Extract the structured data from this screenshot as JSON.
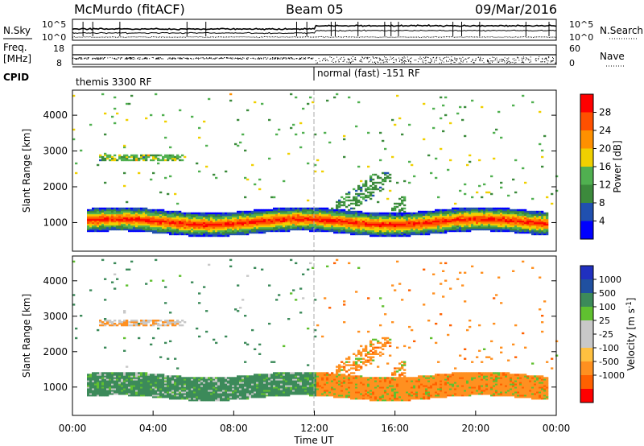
{
  "header": {
    "station": "McMurdo (fitACF)",
    "beam": "Beam 05",
    "date": "09/Mar/2016"
  },
  "noise_panel": {
    "left_label": "N.Sky",
    "right_label": "N.Search",
    "left_ticks": [
      "10^5",
      "10^0"
    ],
    "right_ticks": [
      "10^5",
      "10^0"
    ]
  },
  "freq_panel": {
    "left_label_1": "Freq.",
    "left_label_2": "[MHz]",
    "right_label": "Nave",
    "left_ticks": [
      "18",
      "8"
    ],
    "right_ticks": [
      "60",
      "0"
    ]
  },
  "cpid_panel": {
    "label": "CPID",
    "segments": [
      "themis 3300 RF",
      "normal (fast) -151 RF"
    ]
  },
  "colors": {
    "power_scale": [
      "#0000ff",
      "#2050b0",
      "#3c8a3c",
      "#50b050",
      "#f0d000",
      "#ff9000",
      "#ff5000",
      "#ff0000"
    ],
    "velocity_scale": [
      "#ff0000",
      "#ff6000",
      "#ff9020",
      "#ffc040",
      "#c8c8c8",
      "#c8c8c8",
      "#60c030",
      "#3c8a5a",
      "#2050a0",
      "#2030c0"
    ]
  },
  "chart_data": [
    {
      "type": "heatmap",
      "title": "",
      "ylabel": "Slant Range [km]",
      "xlabel": "",
      "y_ticks": [
        "1000",
        "2000",
        "3000",
        "4000"
      ],
      "ylim": [
        200,
        4700
      ],
      "xlim_hours": [
        0,
        24
      ],
      "colorbar": {
        "label": "Power [dB]",
        "ticks": [
          "4",
          "8",
          "12",
          "16",
          "20",
          "24",
          "28"
        ],
        "range": [
          0,
          30
        ]
      },
      "bands": [
        {
          "x_start": 0.5,
          "x_end": 23.5,
          "y_center_km": 1000,
          "thickness_km": 600,
          "dominant": "orange-red"
        },
        {
          "x_start": 1.0,
          "x_end": 5.5,
          "y_center_km": 2800,
          "thickness_km": 150,
          "dominant": "orange"
        }
      ]
    },
    {
      "type": "heatmap",
      "title": "",
      "ylabel": "Slant Range [km]",
      "xlabel": "Time UT",
      "x_ticks": [
        "00:00",
        "04:00",
        "08:00",
        "12:00",
        "16:00",
        "20:00",
        "00:00"
      ],
      "y_ticks": [
        "1000",
        "2000",
        "3000",
        "4000"
      ],
      "ylim": [
        200,
        4700
      ],
      "xlim_hours": [
        0,
        24
      ],
      "colorbar": {
        "label": "Velocity [m s^-1]",
        "ticks": [
          "1000",
          "500",
          "100",
          "25",
          "-25",
          "-100",
          "-500",
          "-1000"
        ]
      }
    }
  ]
}
